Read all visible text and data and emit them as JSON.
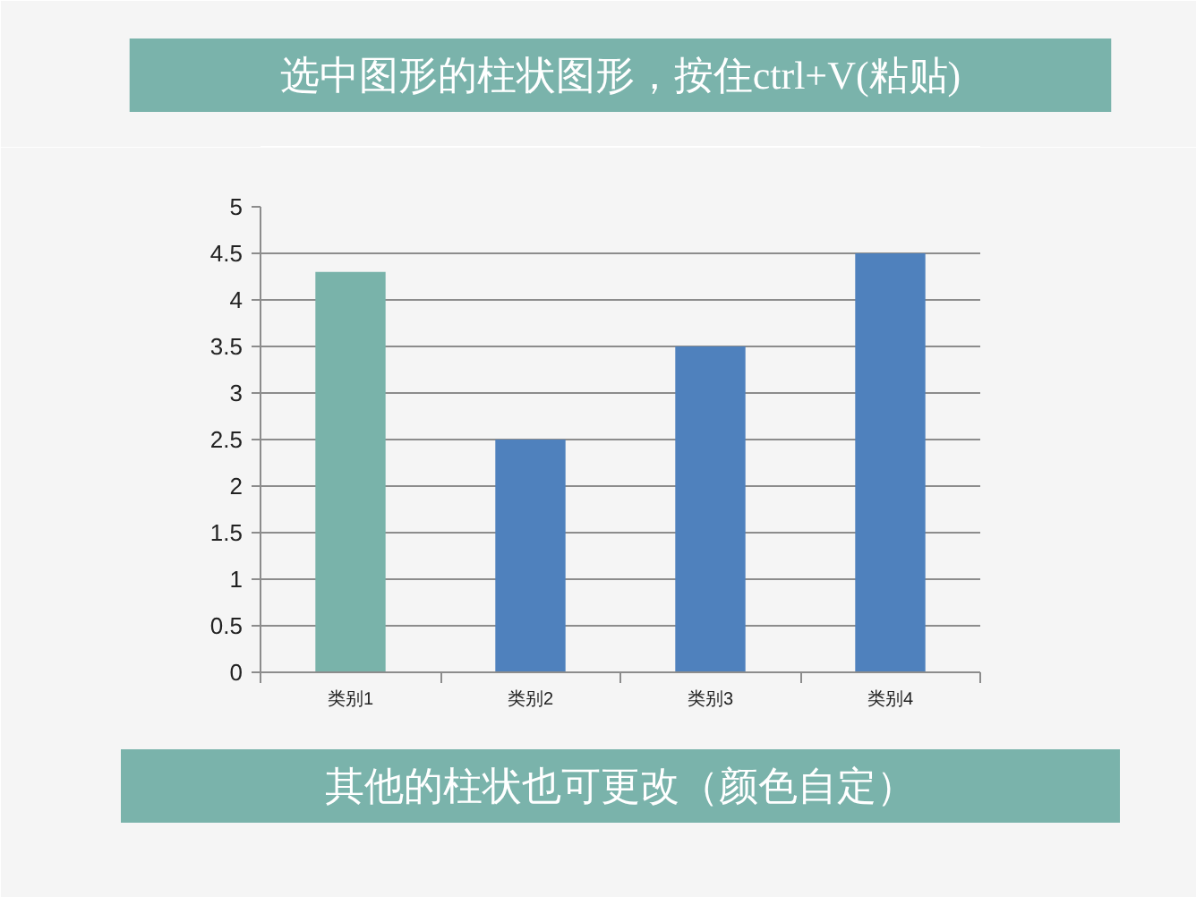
{
  "chart_data": {
    "type": "bar",
    "title": "选中图形的柱状图形，按住ctrl+V(粘贴)",
    "annotations": [
      "其他的柱状也可更改（颜色自定）"
    ],
    "categories": [
      "类别1",
      "类别2",
      "类别3",
      "类别4"
    ],
    "values": [
      4.3,
      2.5,
      3.5,
      4.5
    ],
    "colors": [
      "#79b3aa",
      "#4f81bd",
      "#4f81bd",
      "#4f81bd"
    ],
    "ylim": [
      0,
      5
    ],
    "yticks": [
      0,
      0.5,
      1,
      1.5,
      2,
      2.5,
      3,
      3.5,
      4,
      4.5,
      5
    ],
    "grid": "y"
  }
}
